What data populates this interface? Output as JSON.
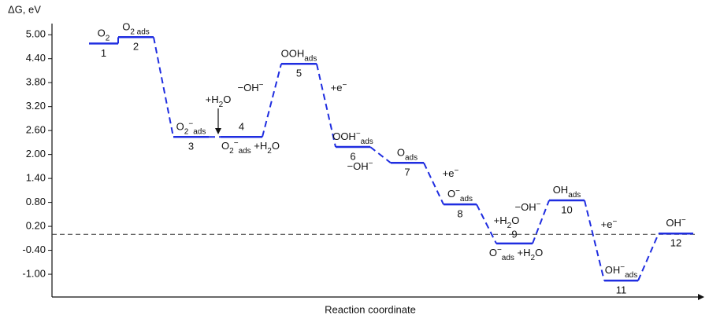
{
  "chart_data": {
    "type": "energy-diagram",
    "y_label": "ΔG, eV",
    "x_label": "Reaction coordinate",
    "ylim": [
      -1.57,
      5.28
    ],
    "yticks": [
      {
        "value": 5.0,
        "label": "5.00"
      },
      {
        "value": 4.4,
        "label": "4.40"
      },
      {
        "value": 3.8,
        "label": "3.80"
      },
      {
        "value": 3.2,
        "label": "3.20"
      },
      {
        "value": 2.6,
        "label": "2.60"
      },
      {
        "value": 2.0,
        "label": "2.00"
      },
      {
        "value": 1.4,
        "label": "1.40"
      },
      {
        "value": 0.8,
        "label": "0.80"
      },
      {
        "value": 0.2,
        "label": "0.20"
      },
      {
        "value": -0.4,
        "label": "-0.40"
      },
      {
        "value": -1.0,
        "label": "-1.00"
      }
    ],
    "reference_line": 0,
    "color": "#1f2de0",
    "levels": [
      {
        "step": "1",
        "value": 4.78,
        "label": [
          {
            "text": "O",
            "style": "normal"
          },
          {
            "text": "2",
            "style": "sub"
          }
        ]
      },
      {
        "step": "2",
        "value": 4.94,
        "label": [
          {
            "text": "O",
            "style": "normal"
          },
          {
            "text": "2 ads",
            "style": "sub"
          }
        ]
      },
      {
        "step": "3",
        "value": 2.44,
        "label": [
          {
            "text": "O",
            "style": "normal"
          },
          {
            "text": "2",
            "style": "sub"
          },
          {
            "text": "−",
            "style": "sup"
          },
          {
            "text": "ads",
            "style": "sub"
          }
        ]
      },
      {
        "step": "4",
        "value": 2.44
      },
      {
        "step": "5",
        "value": 4.27,
        "label": [
          {
            "text": "OOH",
            "style": "normal"
          },
          {
            "text": "ads",
            "style": "sub"
          }
        ]
      },
      {
        "step": "6",
        "value": 2.19,
        "label": [
          {
            "text": "OOH",
            "style": "normal"
          },
          {
            "text": "−",
            "style": "sup"
          },
          {
            "text": "ads",
            "style": "sub"
          }
        ]
      },
      {
        "step": "7",
        "value": 1.79,
        "label": [
          {
            "text": "O",
            "style": "normal"
          },
          {
            "text": "ads",
            "style": "sub"
          }
        ]
      },
      {
        "step": "8",
        "value": 0.75,
        "label": [
          {
            "text": "O",
            "style": "normal"
          },
          {
            "text": "−",
            "style": "sup"
          },
          {
            "text": "ads",
            "style": "sub"
          }
        ]
      },
      {
        "step": "9",
        "value": -0.23
      },
      {
        "step": "10",
        "value": 0.85,
        "label": [
          {
            "text": "OH",
            "style": "normal"
          },
          {
            "text": "ads",
            "style": "sub"
          }
        ]
      },
      {
        "step": "11",
        "value": -1.16,
        "label": [
          {
            "text": "OH",
            "style": "normal"
          },
          {
            "text": "−",
            "style": "sup"
          },
          {
            "text": "ads",
            "style": "sub"
          }
        ]
      },
      {
        "step": "12",
        "value": 0.02,
        "label": [
          {
            "text": "OH",
            "style": "normal"
          },
          {
            "text": "−",
            "style": "sup"
          }
        ]
      }
    ],
    "annotations": [
      [
        {
          "text": "+H",
          "style": "normal"
        },
        {
          "text": "2",
          "style": "sub"
        },
        {
          "text": "O",
          "style": "normal"
        }
      ],
      [
        {
          "text": "−OH",
          "style": "normal"
        },
        {
          "text": "−",
          "style": "sup"
        }
      ],
      [
        {
          "text": "+e",
          "style": "normal"
        },
        {
          "text": "−",
          "style": "sup"
        }
      ],
      [
        {
          "text": "O",
          "style": "normal"
        },
        {
          "text": "2",
          "style": "sub"
        },
        {
          "text": "−",
          "style": "sup"
        },
        {
          "text": "ads",
          "style": "sub"
        },
        {
          "text": " +H",
          "style": "normal"
        },
        {
          "text": "2",
          "style": "sub"
        },
        {
          "text": "O",
          "style": "normal"
        }
      ],
      [
        {
          "text": "−OH",
          "style": "normal"
        },
        {
          "text": "−",
          "style": "sup"
        }
      ],
      [
        {
          "text": "+e",
          "style": "normal"
        },
        {
          "text": "−",
          "style": "sup"
        }
      ],
      [
        {
          "text": "+H",
          "style": "normal"
        },
        {
          "text": "2",
          "style": "sub"
        },
        {
          "text": "O",
          "style": "normal"
        }
      ],
      [
        {
          "text": "−OH",
          "style": "normal"
        },
        {
          "text": "−",
          "style": "sup"
        }
      ],
      [
        {
          "text": "O",
          "style": "normal"
        },
        {
          "text": "−",
          "style": "sup"
        },
        {
          "text": "ads",
          "style": "sub"
        },
        {
          "text": " +H",
          "style": "normal"
        },
        {
          "text": "2",
          "style": "sub"
        },
        {
          "text": "O",
          "style": "normal"
        }
      ],
      [
        {
          "text": "+e",
          "style": "normal"
        },
        {
          "text": "−",
          "style": "sup"
        }
      ]
    ]
  }
}
